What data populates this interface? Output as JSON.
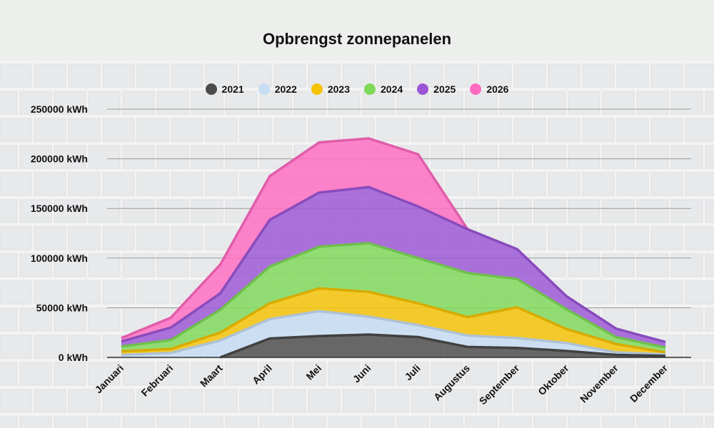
{
  "chart_data": {
    "type": "area",
    "title": "Opbrengst zonnepanelen",
    "categories": [
      "Januari",
      "Februari",
      "Maart",
      "April",
      "Mei",
      "Juni",
      "Juli",
      "Augustus",
      "September",
      "Oktober",
      "November",
      "December"
    ],
    "ylim": [
      0,
      250000
    ],
    "yticks": [
      "0 kWh",
      "50000 kWh",
      "100000 kWh",
      "150000 kWh",
      "200000 kWh",
      "250000 kWh"
    ],
    "ytick_values": [
      0,
      50000,
      100000,
      150000,
      200000,
      250000
    ],
    "stacked": true,
    "grid": true,
    "legend_position": "top",
    "series": [
      {
        "name": "2021",
        "color": "#4a4a4a",
        "values": [
          null,
          null,
          0,
          19000,
          21500,
          23000,
          20500,
          10500,
          9500,
          6500,
          2500,
          1500
        ]
      },
      {
        "name": "2022",
        "color": "#c6ddf3",
        "values": [
          2500,
          4500,
          17000,
          19500,
          25000,
          18000,
          12000,
          11500,
          10000,
          8000,
          2500,
          1500
        ]
      },
      {
        "name": "2023",
        "color": "#f5c200",
        "values": [
          3500,
          4000,
          8000,
          16000,
          23000,
          25000,
          22000,
          18500,
          31000,
          14000,
          8500,
          2000
        ]
      },
      {
        "name": "2024",
        "color": "#7ed957",
        "values": [
          5000,
          9000,
          23000,
          37000,
          42000,
          49000,
          45500,
          44500,
          28500,
          20000,
          7000,
          5000
        ]
      },
      {
        "name": "2025",
        "color": "#9b55d6",
        "values": [
          5000,
          12500,
          16500,
          47000,
          54500,
          56500,
          52000,
          44000,
          30000,
          13000,
          8500,
          5500
        ]
      },
      {
        "name": "2026",
        "color": "#ff6ac1",
        "values": [
          3500,
          10000,
          29000,
          44000,
          50500,
          49000,
          52500,
          0,
          null,
          null,
          null,
          null
        ]
      }
    ]
  }
}
